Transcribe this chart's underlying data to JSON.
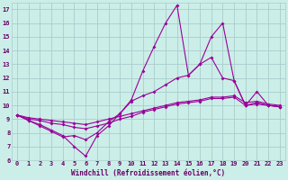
{
  "xlabel": "Windchill (Refroidissement éolien,°C)",
  "bg_color": "#cceee8",
  "grid_color": "#aacccc",
  "line_color": "#990099",
  "xlim": [
    -0.5,
    23.5
  ],
  "ylim": [
    6,
    17.5
  ],
  "yticks": [
    6,
    7,
    8,
    9,
    10,
    11,
    12,
    13,
    14,
    15,
    16,
    17
  ],
  "xticks": [
    0,
    1,
    2,
    3,
    4,
    5,
    6,
    7,
    8,
    9,
    10,
    11,
    12,
    13,
    14,
    15,
    16,
    17,
    18,
    19,
    20,
    21,
    22,
    23
  ],
  "line1_x": [
    0,
    1,
    2,
    3,
    4,
    5,
    6,
    7,
    8,
    9,
    10,
    11,
    12,
    13,
    14,
    15,
    16,
    17,
    18,
    19,
    20,
    21,
    22,
    23
  ],
  "line1_y": [
    9.3,
    8.9,
    8.6,
    8.2,
    7.8,
    7.0,
    6.3,
    7.8,
    8.5,
    9.4,
    10.4,
    12.5,
    14.3,
    16.0,
    17.3,
    12.2,
    13.0,
    15.0,
    16.0,
    11.8,
    10.0,
    11.0,
    10.0,
    9.9
  ],
  "line2_x": [
    0,
    1,
    2,
    3,
    4,
    5,
    6,
    7,
    8,
    9,
    10,
    11,
    12,
    13,
    14,
    15,
    16,
    17,
    18,
    19,
    20,
    21,
    22,
    23
  ],
  "line2_y": [
    9.3,
    8.9,
    8.5,
    8.1,
    7.7,
    7.8,
    7.5,
    8.0,
    8.8,
    9.4,
    10.3,
    10.7,
    11.0,
    11.5,
    12.0,
    12.2,
    13.0,
    13.5,
    12.0,
    11.8,
    10.0,
    10.2,
    10.0,
    9.9
  ],
  "line3_x": [
    0,
    1,
    2,
    3,
    4,
    5,
    6,
    7,
    8,
    9,
    10,
    11,
    12,
    13,
    14,
    15,
    16,
    17,
    18,
    19,
    20,
    21,
    22,
    23
  ],
  "line3_y": [
    9.3,
    9.0,
    8.9,
    8.7,
    8.6,
    8.4,
    8.3,
    8.5,
    8.7,
    9.0,
    9.2,
    9.5,
    9.7,
    9.9,
    10.1,
    10.2,
    10.3,
    10.5,
    10.5,
    10.6,
    10.0,
    10.1,
    10.0,
    9.9
  ],
  "line4_x": [
    0,
    1,
    2,
    3,
    4,
    5,
    6,
    7,
    8,
    9,
    10,
    11,
    12,
    13,
    14,
    15,
    16,
    17,
    18,
    19,
    20,
    21,
    22,
    23
  ],
  "line4_y": [
    9.3,
    9.1,
    9.0,
    8.9,
    8.8,
    8.7,
    8.6,
    8.8,
    9.0,
    9.2,
    9.4,
    9.6,
    9.8,
    10.0,
    10.2,
    10.3,
    10.4,
    10.6,
    10.6,
    10.7,
    10.2,
    10.3,
    10.1,
    10.0
  ],
  "font_color": "#660066",
  "marker": "D",
  "markersize": 2.0,
  "linewidth": 0.8,
  "xlabel_fontsize": 5.5,
  "tick_fontsize": 5.0
}
